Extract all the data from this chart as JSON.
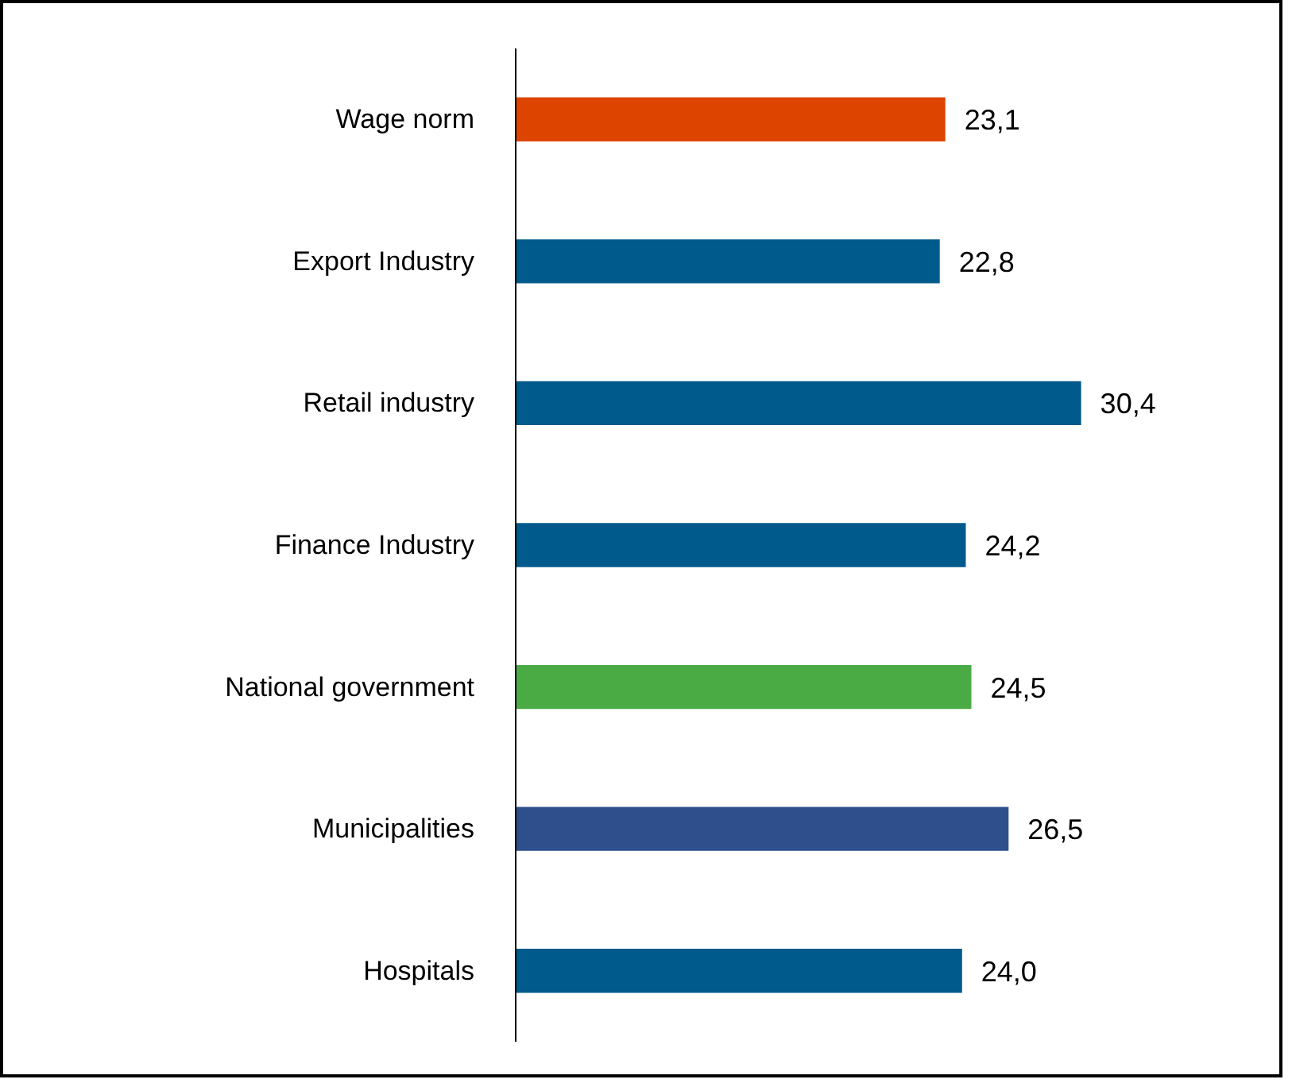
{
  "chart_data": {
    "type": "bar",
    "orientation": "horizontal",
    "categories": [
      "Wage norm",
      "Export Industry",
      "Retail industry",
      "Finance Industry",
      "National government",
      "Municipalities",
      "Hospitals"
    ],
    "values": [
      23.1,
      22.8,
      30.4,
      24.2,
      24.5,
      26.5,
      24.0
    ],
    "colors": [
      "#dd4400",
      "#005a8c",
      "#005a8c",
      "#005a8c",
      "#4aab45",
      "#2e4f8c",
      "#005a8c"
    ],
    "value_labels": [
      "23,1",
      "22,8",
      "30,4",
      "24,2",
      "24,5",
      "26,5",
      "24,0"
    ],
    "grid": false
  }
}
